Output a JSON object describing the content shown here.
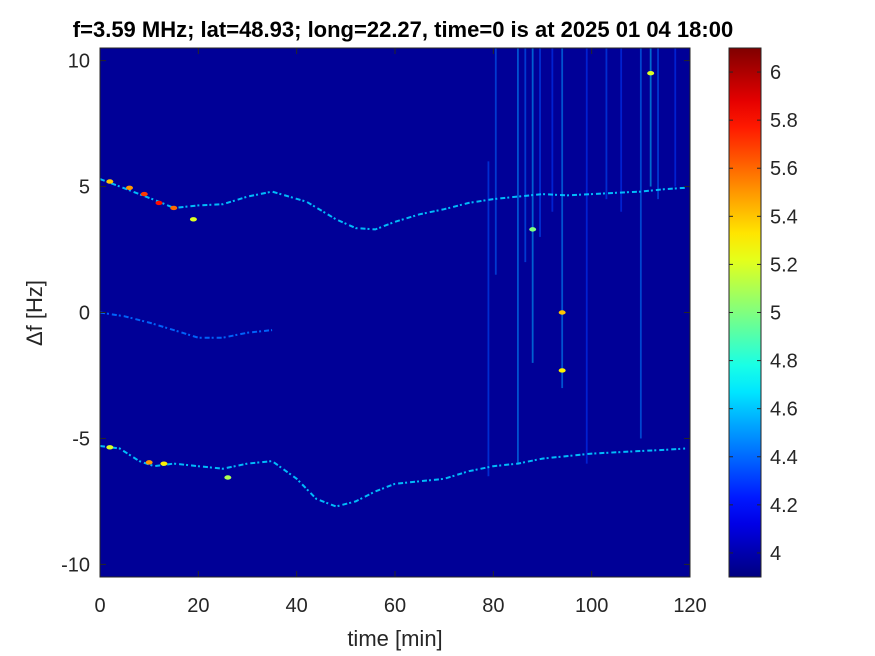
{
  "chart_data": {
    "type": "heatmap",
    "title": "f=3.59 MHz;  lat=48.93; long=22.27, time=0 is at 2025 01 04 18:00",
    "xlabel": "time [min]",
    "ylabel": "Δf [Hz]",
    "xlim": [
      0,
      120
    ],
    "ylim": [
      -10.5,
      10.5
    ],
    "xticks": [
      "0",
      "20",
      "40",
      "60",
      "80",
      "100",
      "120"
    ],
    "yticks": [
      "-10",
      "-5",
      "0",
      "5",
      "10"
    ],
    "colorbar": {
      "range": [
        3.9,
        6.1
      ],
      "ticks": [
        "4",
        "4.2",
        "4.4",
        "4.6",
        "4.8",
        "5",
        "5.2",
        "5.4",
        "5.6",
        "5.8",
        "6"
      ],
      "colormap": "jet"
    },
    "background_value": 3.95,
    "traces": [
      {
        "name_hint": "upper",
        "intensity": 4.6,
        "points": [
          [
            0,
            5.3
          ],
          [
            4,
            5.0
          ],
          [
            8,
            4.7
          ],
          [
            12,
            4.4
          ],
          [
            15,
            4.15
          ],
          [
            20,
            4.25
          ],
          [
            25,
            4.3
          ],
          [
            30,
            4.6
          ],
          [
            35,
            4.8
          ],
          [
            42,
            4.4
          ],
          [
            48,
            3.7
          ],
          [
            52,
            3.35
          ],
          [
            56,
            3.3
          ],
          [
            60,
            3.6
          ],
          [
            65,
            3.9
          ],
          [
            70,
            4.1
          ],
          [
            75,
            4.35
          ],
          [
            80,
            4.5
          ],
          [
            85,
            4.6
          ],
          [
            90,
            4.7
          ],
          [
            95,
            4.65
          ],
          [
            100,
            4.7
          ],
          [
            105,
            4.75
          ],
          [
            110,
            4.8
          ],
          [
            115,
            4.9
          ],
          [
            119,
            4.95
          ]
        ]
      },
      {
        "name_hint": "middle",
        "intensity": 4.4,
        "points": [
          [
            0,
            0.0
          ],
          [
            5,
            -0.15
          ],
          [
            10,
            -0.4
          ],
          [
            15,
            -0.7
          ],
          [
            20,
            -1.0
          ],
          [
            25,
            -1.0
          ],
          [
            30,
            -0.8
          ],
          [
            35,
            -0.7
          ]
        ]
      },
      {
        "name_hint": "lower",
        "intensity": 4.6,
        "points": [
          [
            0,
            -5.3
          ],
          [
            4,
            -5.4
          ],
          [
            8,
            -5.9
          ],
          [
            11,
            -6.1
          ],
          [
            15,
            -6.0
          ],
          [
            20,
            -6.1
          ],
          [
            25,
            -6.2
          ],
          [
            30,
            -6.0
          ],
          [
            35,
            -5.9
          ],
          [
            40,
            -6.6
          ],
          [
            44,
            -7.4
          ],
          [
            48,
            -7.7
          ],
          [
            52,
            -7.5
          ],
          [
            56,
            -7.1
          ],
          [
            60,
            -6.8
          ],
          [
            65,
            -6.7
          ],
          [
            70,
            -6.6
          ],
          [
            75,
            -6.3
          ],
          [
            80,
            -6.1
          ],
          [
            85,
            -6.0
          ],
          [
            90,
            -5.8
          ],
          [
            95,
            -5.7
          ],
          [
            100,
            -5.6
          ],
          [
            105,
            -5.55
          ],
          [
            110,
            -5.5
          ],
          [
            115,
            -5.45
          ],
          [
            119,
            -5.4
          ]
        ]
      }
    ],
    "hotspots": [
      {
        "t": 2,
        "f": 5.2,
        "v": 5.4
      },
      {
        "t": 6,
        "f": 4.95,
        "v": 5.5
      },
      {
        "t": 9,
        "f": 4.7,
        "v": 5.7
      },
      {
        "t": 12,
        "f": 4.35,
        "v": 5.8
      },
      {
        "t": 15,
        "f": 4.15,
        "v": 5.6
      },
      {
        "t": 19,
        "f": 3.7,
        "v": 5.2
      },
      {
        "t": 10,
        "f": -5.95,
        "v": 5.5
      },
      {
        "t": 13,
        "f": -6.0,
        "v": 5.3
      },
      {
        "t": 2,
        "f": -5.35,
        "v": 5.2
      },
      {
        "t": 26,
        "f": -6.55,
        "v": 5.1
      },
      {
        "t": 94,
        "f": 0.0,
        "v": 5.4
      },
      {
        "t": 94,
        "f": -2.3,
        "v": 5.3
      },
      {
        "t": 88,
        "f": 3.3,
        "v": 5.0
      },
      {
        "t": 112,
        "f": 9.5,
        "v": 5.2
      }
    ],
    "vertical_streaks": [
      {
        "t": 79,
        "f0": -6.5,
        "f1": 6.0,
        "v": 4.35
      },
      {
        "t": 80.5,
        "f0": 1.5,
        "f1": 10.5,
        "v": 4.4
      },
      {
        "t": 85,
        "f0": -6.0,
        "f1": 10.5,
        "v": 4.5
      },
      {
        "t": 86.5,
        "f0": 2.0,
        "f1": 10.5,
        "v": 4.4
      },
      {
        "t": 88,
        "f0": -2.0,
        "f1": 10.5,
        "v": 4.55
      },
      {
        "t": 89.5,
        "f0": 3.0,
        "f1": 10.5,
        "v": 4.35
      },
      {
        "t": 92,
        "f0": 4.0,
        "f1": 10.5,
        "v": 4.3
      },
      {
        "t": 94,
        "f0": -3.0,
        "f1": 10.5,
        "v": 4.5
      },
      {
        "t": 99,
        "f0": -6.0,
        "f1": 10.5,
        "v": 4.3
      },
      {
        "t": 103,
        "f0": 4.5,
        "f1": 10.5,
        "v": 4.35
      },
      {
        "t": 106,
        "f0": 4.0,
        "f1": 10.5,
        "v": 4.3
      },
      {
        "t": 110,
        "f0": -5.0,
        "f1": 10.5,
        "v": 4.45
      },
      {
        "t": 112,
        "f0": 5.0,
        "f1": 10.5,
        "v": 4.6
      },
      {
        "t": 113.5,
        "f0": 4.5,
        "f1": 10.5,
        "v": 4.4
      },
      {
        "t": 117,
        "f0": 5.0,
        "f1": 10.5,
        "v": 4.3
      }
    ],
    "grid": false,
    "legend": "none"
  }
}
